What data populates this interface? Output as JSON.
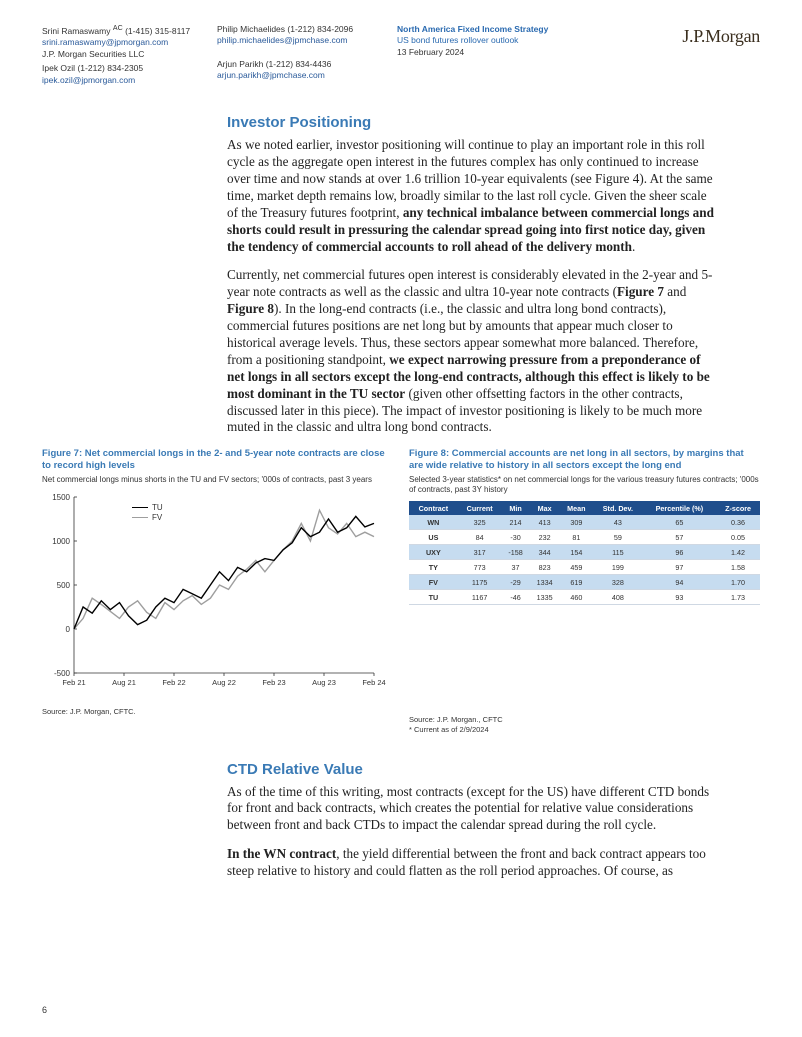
{
  "header": {
    "authors": [
      {
        "name": "Srini Ramaswamy",
        "sup": "AC",
        "phone": "(1-415) 315-8117",
        "email": "srini.ramaswamy@jpmorgan.com",
        "org": "J.P. Morgan Securities LLC"
      },
      {
        "name": "Ipek Ozil",
        "phone": "(1-212) 834-2305",
        "email": "ipek.ozil@jpmorgan.com"
      },
      {
        "name": "Philip Michaelides",
        "phone": "(1-212) 834-2096",
        "email": "philip.michaelides@jpmchase.com"
      },
      {
        "name": "Arjun Parikh",
        "phone": "(1-212) 834-4436",
        "email": "arjun.parikh@jpmchase.com"
      }
    ],
    "group_line1": "North America Fixed Income Strategy",
    "group_line2": "US bond futures rollover outlook",
    "date": "13 February 2024",
    "logo_text": "J.P.Morgan"
  },
  "section1": {
    "title": "Investor Positioning",
    "p1a": "As we noted earlier, investor positioning will continue to play an important role in this roll cycle as the aggregate open interest in the futures complex has only continued to increase over time and now stands at over 1.6 trillion 10-year equivalents (see Figure 4). At the same time, market depth remains low, broadly similar to the last roll cycle. Given the sheer scale of the Treasury futures footprint, ",
    "p1b": "any technical imbalance between commercial longs and shorts could result in pressuring the calendar spread going into first notice day, given the tendency of commercial accounts to roll ahead of the delivery month",
    "p1c": ".",
    "p2a": "Currently, net commercial futures open interest is considerably elevated in the 2-year and 5-year note contracts as well as the classic and ultra 10-year note contracts (",
    "p2b": "Figure 7",
    "p2c": " and ",
    "p2d": "Figure 8",
    "p2e": "). In the long-end contracts (i.e., the classic and ultra long bond contracts), commercial futures positions are net long but by amounts that appear much closer to historical average levels. Thus, these sectors appear somewhat more balanced. Therefore, from a positioning standpoint, ",
    "p2f": "we expect narrowing pressure from a preponderance of net longs in all sectors except the long-end contracts, although this effect is likely to be most dominant in the TU sector",
    "p2g": " (given other offsetting factors in the other contracts, discussed later in this piece). The impact of investor positioning is likely to be much more muted in the classic and ultra long bond contracts."
  },
  "figure7": {
    "title": "Figure 7: Net commercial longs in the 2- and 5-year note contracts are close to record high levels",
    "subtitle": "Net commercial longs minus shorts in the TU and FV sectors; '000s of contracts, past 3 years",
    "source": "Source: J.P. Morgan, CFTC.",
    "chart": {
      "type": "line",
      "series": [
        {
          "name": "TU",
          "color": "#000000"
        },
        {
          "name": "FV",
          "color": "#9e9e9e"
        }
      ],
      "xticks": [
        "Feb 21",
        "Aug 21",
        "Feb 22",
        "Aug 22",
        "Feb 23",
        "Aug 23",
        "Feb 24"
      ],
      "yticks": [
        -500,
        0,
        500,
        1000,
        1500
      ],
      "ylim": [
        -500,
        1500
      ],
      "background": "#ffffff",
      "tu_values": [
        0,
        250,
        180,
        320,
        220,
        300,
        150,
        50,
        100,
        250,
        350,
        300,
        450,
        400,
        350,
        500,
        650,
        550,
        700,
        650,
        750,
        800,
        780,
        900,
        980,
        1150,
        1050,
        1100,
        1250,
        1100,
        1150,
        1280,
        1160,
        1200
      ],
      "fv_values": [
        0,
        120,
        350,
        280,
        200,
        120,
        250,
        320,
        190,
        120,
        300,
        220,
        320,
        380,
        280,
        350,
        500,
        450,
        600,
        680,
        780,
        650,
        780,
        900,
        1000,
        1200,
        1000,
        1350,
        1150,
        1080,
        1200,
        1050,
        1100,
        1050
      ]
    }
  },
  "figure8": {
    "title": "Figure 8: Commercial accounts are net long in all sectors, by margins that are wide relative to history in all sectors except the long end",
    "subtitle": "Selected 3-year statistics* on net commercial longs for the various treasury futures contracts; '000s of contracts, past 3Y history",
    "source": "Source: J.P. Morgan., CFTC",
    "note": "* Current as of 2/9/2024",
    "table": {
      "columns": [
        "Contract",
        "Current",
        "Min",
        "Max",
        "Mean",
        "Std. Dev.",
        "Percentile (%)",
        "Z-score"
      ],
      "rows": [
        {
          "hl": true,
          "cells": [
            "WN",
            "325",
            "214",
            "413",
            "309",
            "43",
            "65",
            "0.36"
          ]
        },
        {
          "hl": false,
          "cells": [
            "US",
            "84",
            "-30",
            "232",
            "81",
            "59",
            "57",
            "0.05"
          ]
        },
        {
          "hl": true,
          "cells": [
            "UXY",
            "317",
            "-158",
            "344",
            "154",
            "115",
            "96",
            "1.42"
          ]
        },
        {
          "hl": false,
          "cells": [
            "TY",
            "773",
            "37",
            "823",
            "459",
            "199",
            "97",
            "1.58"
          ]
        },
        {
          "hl": true,
          "cells": [
            "FV",
            "1175",
            "-29",
            "1334",
            "619",
            "328",
            "94",
            "1.70"
          ]
        },
        {
          "hl": false,
          "cells": [
            "TU",
            "1167",
            "-46",
            "1335",
            "460",
            "408",
            "93",
            "1.73"
          ]
        }
      ]
    }
  },
  "section2": {
    "title": "CTD Relative Value",
    "p1": "As of the time of this writing, most contracts (except for the US) have different CTD bonds for front and back contracts, which creates the potential for relative value considerations between front and back CTDs to impact the calendar spread during the roll cycle.",
    "p2a": "In the WN contract",
    "p2b": ", the yield differential between the front and back contract appears too steep relative to history and could flatten as the roll period approaches. Of course, as"
  },
  "page_number": "6"
}
